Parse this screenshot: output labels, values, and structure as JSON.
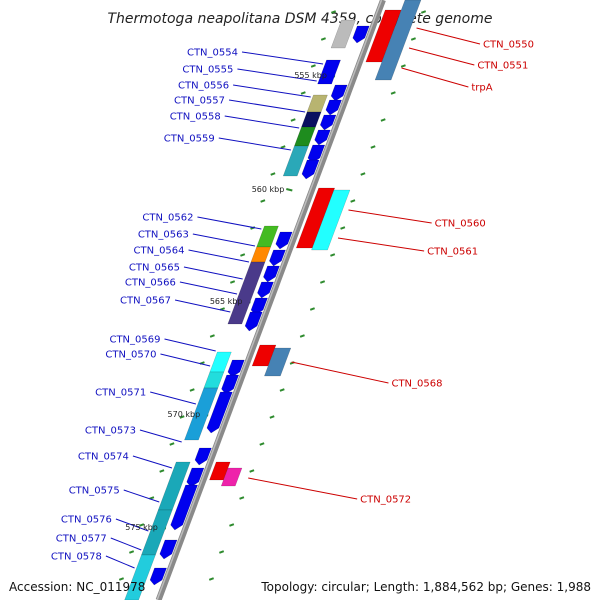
{
  "title": "Thermotoga neapolitana DSM 4359, complete genome",
  "footer": {
    "accession": "Accession: NC_011978",
    "summary": "Topology: circular; Length: 1,884,562 bp; Genes: 1,988"
  },
  "colors": {
    "backbone": "#8a8a8a",
    "left_label": "#1010c0",
    "right_label": "#cc0000",
    "tick": "#2e8b2e"
  },
  "kbp_markers": [
    "555 kbp",
    "560 kbp",
    "565 kbp",
    "570 kbp",
    "575 kbp"
  ],
  "left_genes": [
    {
      "label": "CTN_0554",
      "color": "#bbbbbb"
    },
    {
      "label": "CTN_0555",
      "color": "#0000ee"
    },
    {
      "label": "CTN_0556",
      "color": "#b8b470"
    },
    {
      "label": "CTN_0557",
      "color": "#0a1060"
    },
    {
      "label": "CTN_0558",
      "color": "#1e8c1e"
    },
    {
      "label": "CTN_0559",
      "color": "#2aa8b8"
    },
    {
      "label": "CTN_0562",
      "color": "#44bb22"
    },
    {
      "label": "CTN_0563",
      "color": "#ff8800"
    },
    {
      "label": "CTN_0564",
      "color": "#4a3a8a"
    },
    {
      "label": "CTN_0565",
      "color": "#4a3a8a"
    },
    {
      "label": "CTN_0566",
      "color": "#4a3a8a"
    },
    {
      "label": "CTN_0567",
      "color": "#4a3a8a"
    },
    {
      "label": "CTN_0569",
      "color": "#22ffff"
    },
    {
      "label": "CTN_0570",
      "color": "#22dddd"
    },
    {
      "label": "CTN_0571",
      "color": "#1a9fd8"
    },
    {
      "label": "CTN_0573",
      "color": "#0000ee"
    },
    {
      "label": "CTN_0574",
      "color": "#1aa8b8"
    },
    {
      "label": "CTN_0575",
      "color": "#1aa8b8"
    },
    {
      "label": "CTN_0576",
      "color": "#1aa8b8"
    },
    {
      "label": "CTN_0577",
      "color": "#22ccdd"
    },
    {
      "label": "CTN_0578",
      "color": "#22ccdd"
    }
  ],
  "right_genes": [
    {
      "label": "CTN_0550",
      "color": "#ee0000"
    },
    {
      "label": "CTN_0551",
      "color": "#4682b4"
    },
    {
      "label": "trpA",
      "color": "#ee0000"
    },
    {
      "label": "CTN_0560",
      "color": "#ee0000"
    },
    {
      "label": "CTN_0561",
      "color": "#22ffff"
    },
    {
      "label": "CTN_0568",
      "color": "#ee0000"
    },
    {
      "label": "CTN_0572",
      "color": "#ee22aa"
    }
  ]
}
